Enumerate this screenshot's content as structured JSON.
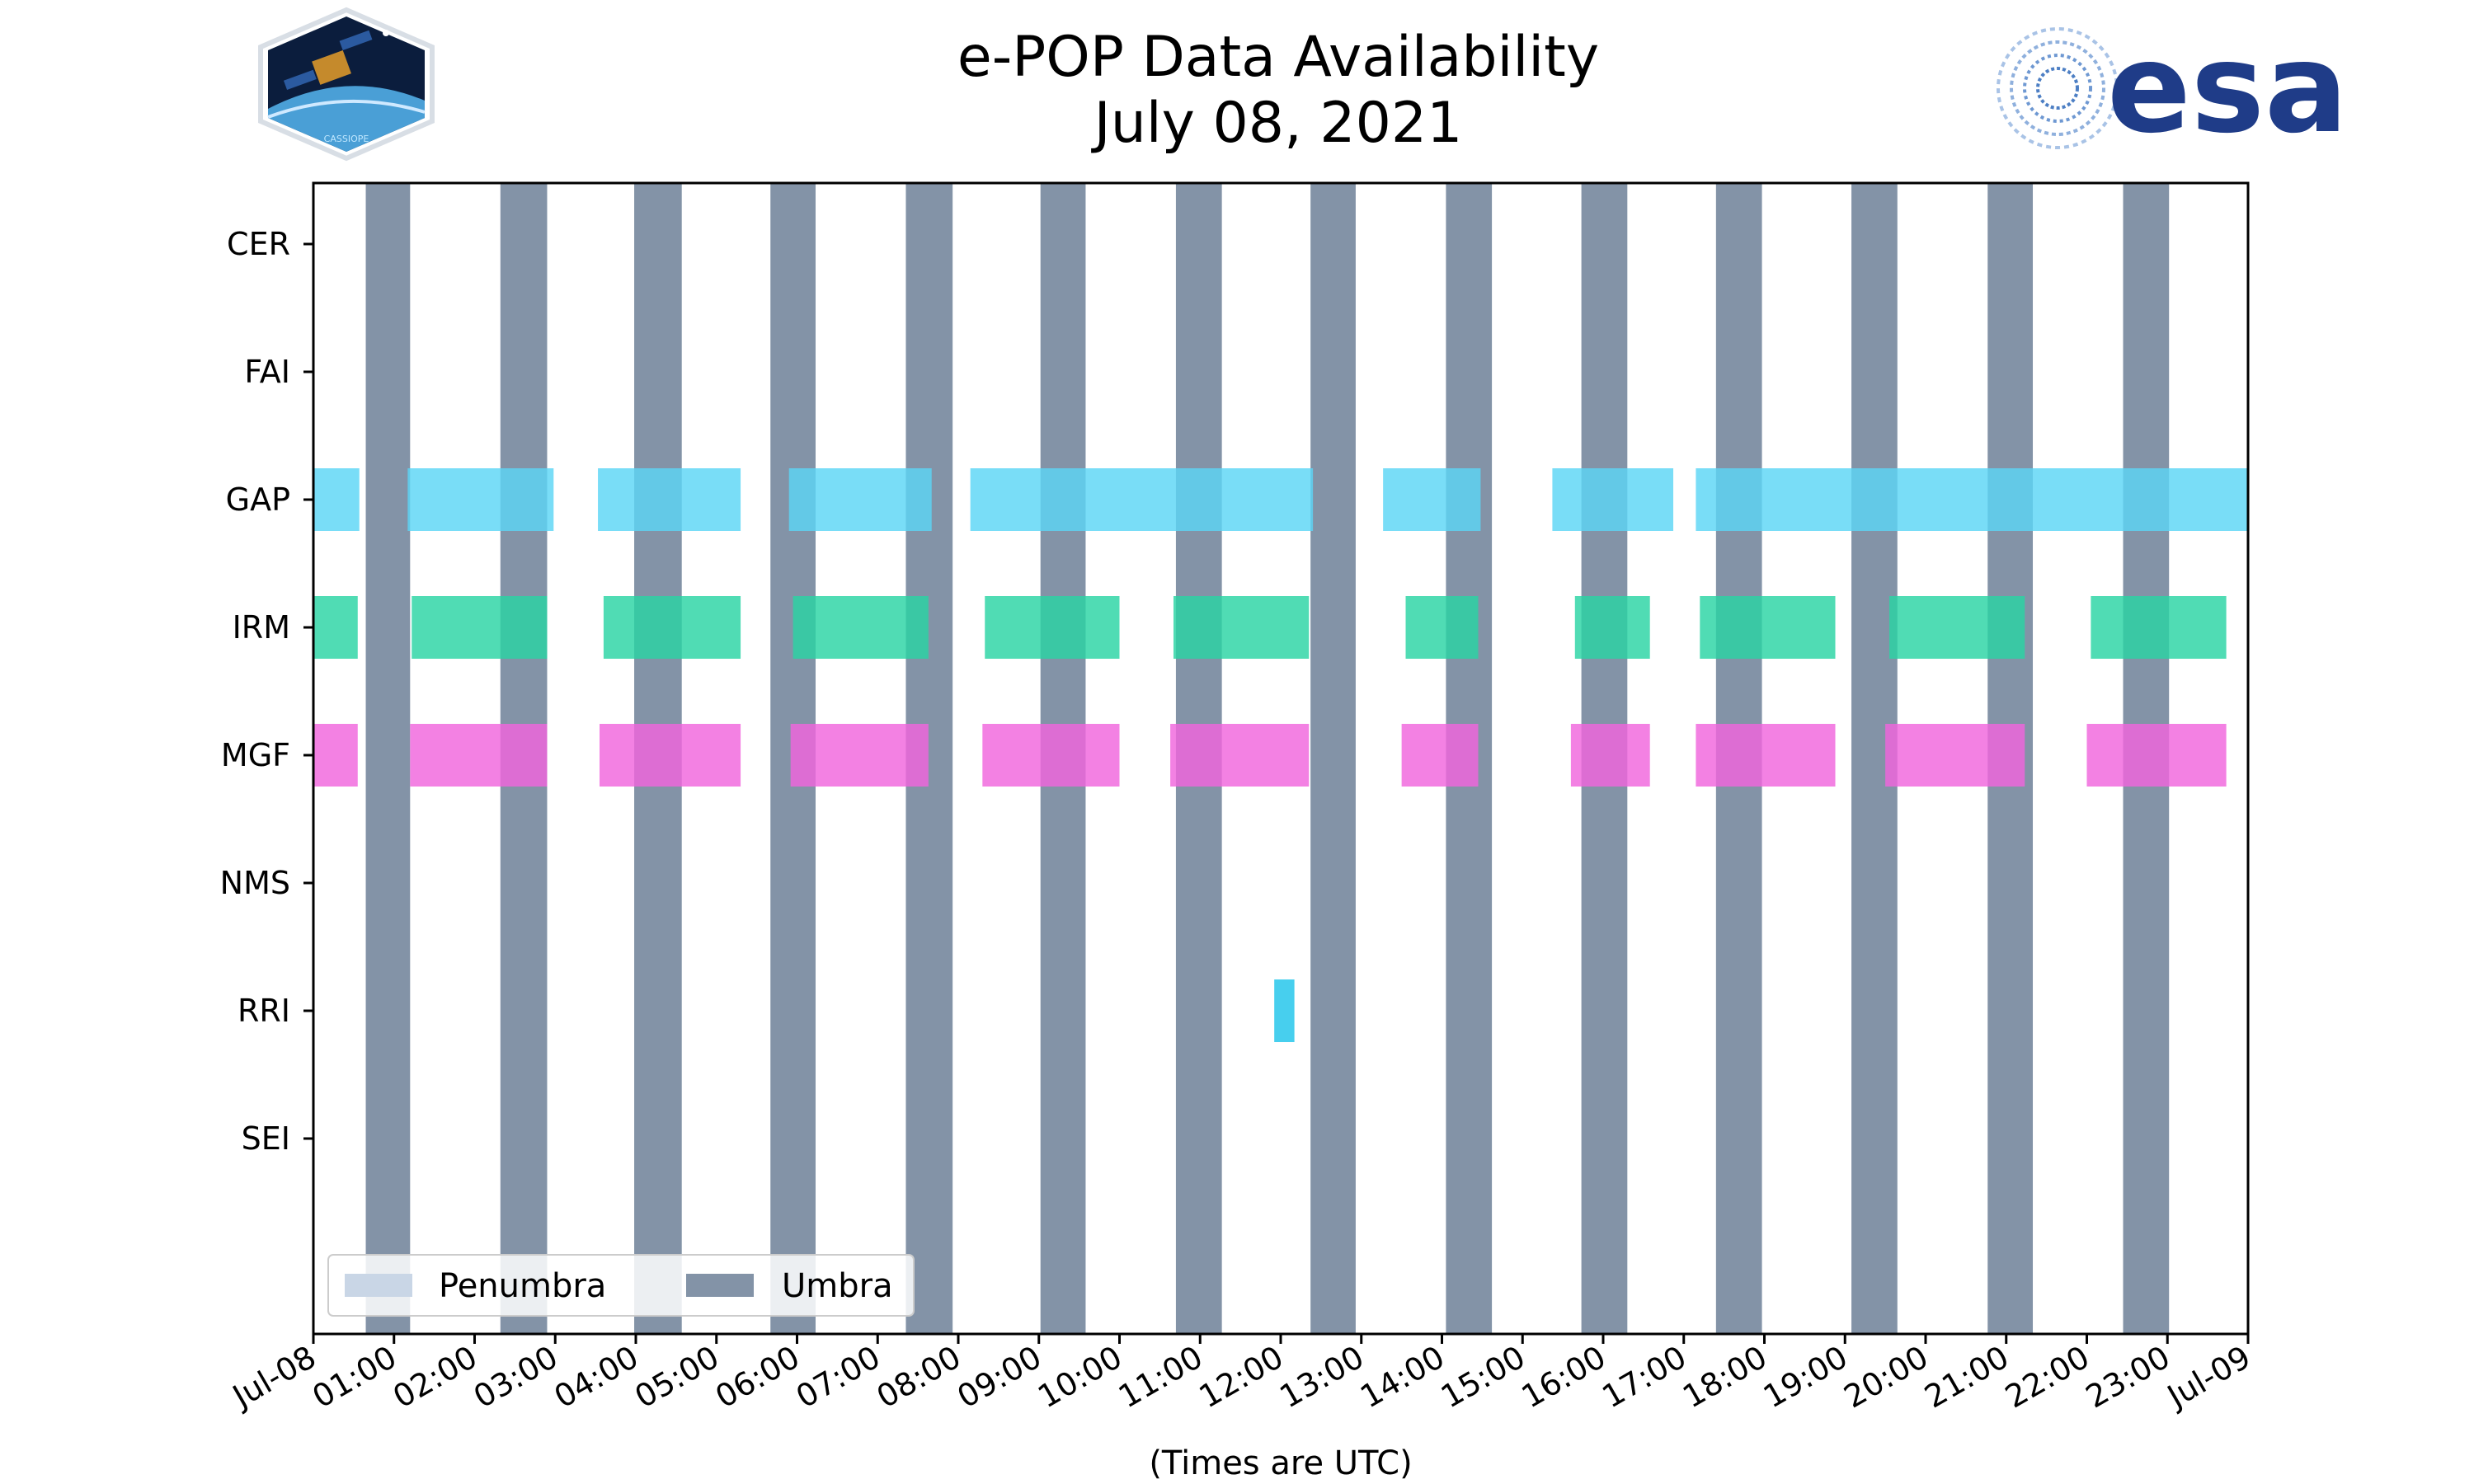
{
  "chart_data": {
    "type": "gantt",
    "title_line1": "e-POP Data Availability",
    "title_line2": "July 08, 2021",
    "xlabel": "(Times are UTC)",
    "x_range_hours": [
      0,
      24
    ],
    "x_tick_hours": [
      0,
      1,
      2,
      3,
      4,
      5,
      6,
      7,
      8,
      9,
      10,
      11,
      12,
      13,
      14,
      15,
      16,
      17,
      18,
      19,
      20,
      21,
      22,
      23,
      24
    ],
    "x_tick_labels": [
      "Jul-08",
      "01:00",
      "02:00",
      "03:00",
      "04:00",
      "05:00",
      "06:00",
      "07:00",
      "08:00",
      "09:00",
      "10:00",
      "11:00",
      "12:00",
      "13:00",
      "14:00",
      "15:00",
      "16:00",
      "17:00",
      "18:00",
      "19:00",
      "20:00",
      "21:00",
      "22:00",
      "23:00",
      "Jul-09"
    ],
    "categories": [
      "CER",
      "FAI",
      "GAP",
      "IRM",
      "MGF",
      "NMS",
      "RRI",
      "SEI"
    ],
    "instruments": [
      {
        "name": "CER",
        "color": "#5bd6f5",
        "intervals": []
      },
      {
        "name": "FAI",
        "color": "#5bd6f5",
        "intervals": []
      },
      {
        "name": "GAP",
        "color": "#5bd6f5",
        "intervals": [
          [
            0.0,
            0.57
          ],
          [
            1.17,
            2.98
          ],
          [
            3.53,
            5.3
          ],
          [
            5.9,
            7.67
          ],
          [
            8.15,
            12.4
          ],
          [
            13.27,
            14.48
          ],
          [
            15.37,
            16.87
          ],
          [
            17.15,
            24.0
          ]
        ]
      },
      {
        "name": "IRM",
        "color": "#2ad4a4",
        "intervals": [
          [
            0.0,
            0.55
          ],
          [
            1.22,
            2.9
          ],
          [
            3.6,
            5.3
          ],
          [
            5.95,
            7.63
          ],
          [
            8.33,
            10.0
          ],
          [
            10.67,
            12.35
          ],
          [
            13.55,
            14.45
          ],
          [
            15.65,
            16.58
          ],
          [
            17.2,
            18.88
          ],
          [
            19.55,
            21.23
          ],
          [
            22.05,
            23.73
          ]
        ]
      },
      {
        "name": "MGF",
        "color": "#f065dd",
        "intervals": [
          [
            0.0,
            0.55
          ],
          [
            1.2,
            2.9
          ],
          [
            3.55,
            5.3
          ],
          [
            5.92,
            7.63
          ],
          [
            8.3,
            10.0
          ],
          [
            10.63,
            12.35
          ],
          [
            13.5,
            14.45
          ],
          [
            15.6,
            16.58
          ],
          [
            17.15,
            18.88
          ],
          [
            19.5,
            21.23
          ],
          [
            22.0,
            23.73
          ]
        ]
      },
      {
        "name": "NMS",
        "color": "#5bd6f5",
        "intervals": []
      },
      {
        "name": "RRI",
        "color": "#1fc4ea",
        "intervals": [
          [
            11.92,
            12.17
          ]
        ]
      },
      {
        "name": "SEI",
        "color": "#5bd6f5",
        "intervals": []
      }
    ],
    "umbra_intervals": [
      [
        0.65,
        1.2
      ],
      [
        2.32,
        2.9
      ],
      [
        3.98,
        4.57
      ],
      [
        5.67,
        6.23
      ],
      [
        7.35,
        7.93
      ],
      [
        9.02,
        9.58
      ],
      [
        10.7,
        11.27
      ],
      [
        12.37,
        12.93
      ],
      [
        14.05,
        14.62
      ],
      [
        15.73,
        16.3
      ],
      [
        17.4,
        17.97
      ],
      [
        19.08,
        19.65
      ],
      [
        20.77,
        21.33
      ],
      [
        22.45,
        23.02
      ]
    ],
    "penumbra_intervals": [],
    "umbra_color": "#8393a7",
    "penumbra_color": "#c9d6e6",
    "legend": {
      "placement": "lower-left",
      "penumbra_label": "Penumbra",
      "umbra_label": "Umbra"
    }
  },
  "logos": {
    "left": {
      "name": "CASSIOPE",
      "text": "CASSIOPE"
    },
    "right": {
      "name": "ESA",
      "text": "esa"
    }
  }
}
